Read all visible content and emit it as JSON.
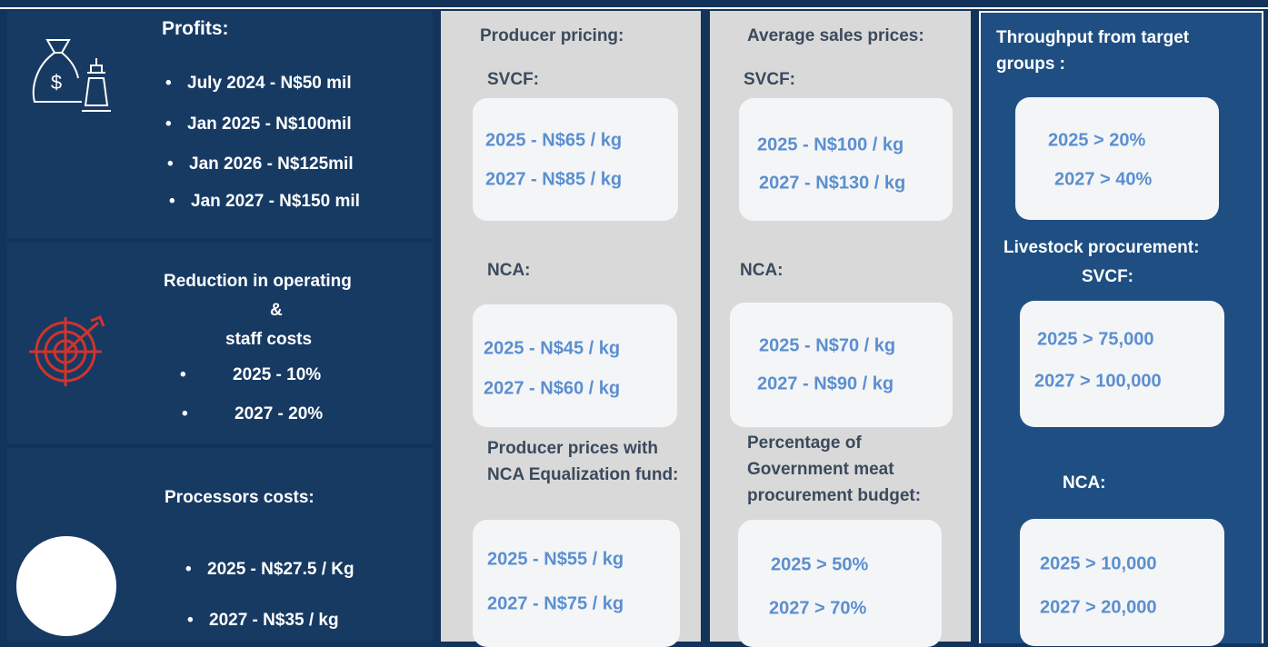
{
  "profits": {
    "title": "Profits:",
    "items": [
      "July 2024 - N$50 mil",
      "Jan 2025  - N$100mil",
      "Jan 2026 - N$125mil",
      "Jan 2027 - N$150 mil"
    ]
  },
  "reduction": {
    "title": [
      "Reduction in operating",
      "&",
      "staff costs"
    ],
    "items": [
      "2025 - 10%",
      "2027 - 20%"
    ]
  },
  "processors": {
    "title": "Processors costs:",
    "items": [
      "2025  - N$27.5 / Kg",
      "2027  - N$35 / kg"
    ]
  },
  "producer_pricing": {
    "title": "Producer pricing:",
    "groups": [
      {
        "label": "SVCF:",
        "items": [
          "2025  - N$65 / kg",
          "2027 - N$85 / kg"
        ]
      },
      {
        "label": "NCA:",
        "items": [
          "2025 - N$45 / kg",
          "2027 - N$60 / kg"
        ]
      },
      {
        "label": "Producer prices with NCA Equalization fund:",
        "items": [
          "2025 - N$55 / kg",
          "2027 - N$75 / kg"
        ]
      }
    ]
  },
  "sales_prices": {
    "title": "Average sales prices:",
    "groups": [
      {
        "label": "SVCF:",
        "items": [
          "2025 - N$100 / kg",
          "2027 - N$130 / kg"
        ]
      },
      {
        "label": "NCA:",
        "items": [
          "2025 - N$70 / kg",
          "2027 - N$90 / kg"
        ]
      },
      {
        "label": "Percentage of Government meat procurement budget:",
        "items": [
          "2025 > 50%",
          "2027 > 70%"
        ]
      }
    ]
  },
  "throughput": {
    "title": "Throughput from target groups :",
    "items": [
      "2025 > 20%",
      "2027 > 40%"
    ]
  },
  "livestock": {
    "title": "Livestock procurement:",
    "groups": [
      {
        "label": "SVCF:",
        "items": [
          "2025  > 75,000",
          "2027 > 100,000"
        ]
      },
      {
        "label": "NCA:",
        "items": [
          "2025 > 10,000",
          "2027  > 20,000"
        ]
      }
    ]
  }
}
